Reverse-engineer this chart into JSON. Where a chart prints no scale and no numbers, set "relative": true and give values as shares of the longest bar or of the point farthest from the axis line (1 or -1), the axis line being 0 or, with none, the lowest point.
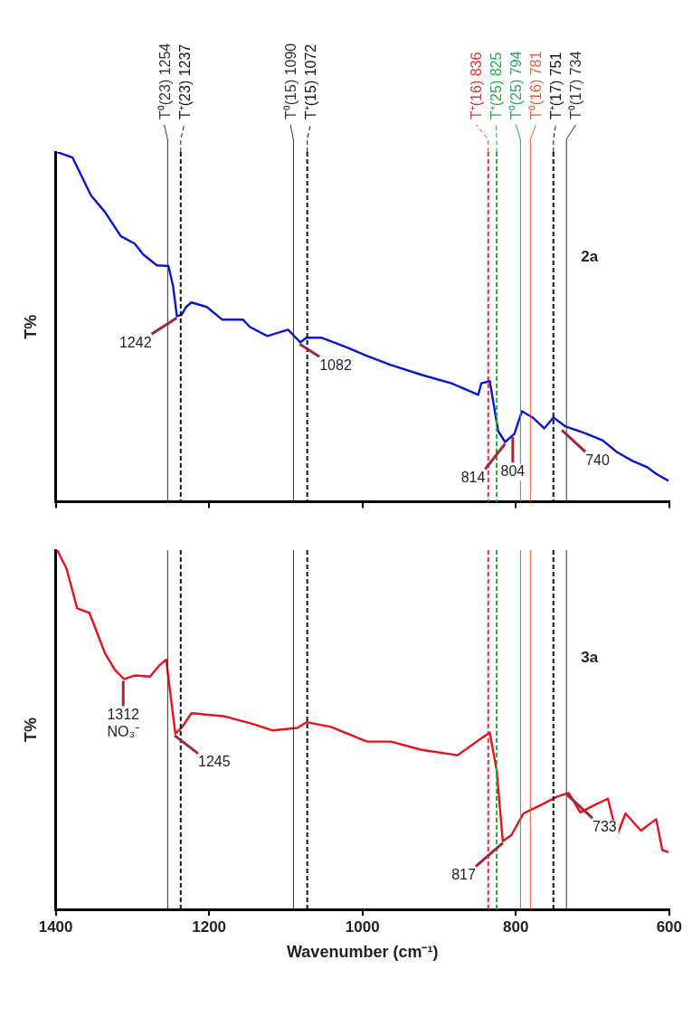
{
  "chart_data": [
    {
      "type": "line",
      "relative": true,
      "ylabel": "T%",
      "xlim": [
        1400,
        600
      ],
      "xticks": [
        1400,
        1200,
        1000,
        800,
        600
      ],
      "tick_labels": false,
      "legend": false,
      "grid": false,
      "marker": "none",
      "series": [
        {
          "color": "#0a14d2",
          "x": [
            1398,
            1378,
            1354,
            1336,
            1315,
            1297,
            1286,
            1268,
            1253,
            1247,
            1242,
            1236,
            1230,
            1223,
            1203,
            1183,
            1156,
            1147,
            1124,
            1097,
            1081,
            1073,
            1053,
            1022,
            994,
            963,
            923,
            884,
            849,
            845,
            834,
            823,
            814,
            802,
            792,
            778,
            763,
            751,
            735,
            711,
            687,
            668,
            648,
            628,
            617,
            601
          ],
          "values": [
            1.0,
            0.984,
            0.876,
            0.829,
            0.759,
            0.738,
            0.707,
            0.676,
            0.674,
            0.617,
            0.531,
            0.534,
            0.557,
            0.57,
            0.557,
            0.521,
            0.521,
            0.5,
            0.474,
            0.492,
            0.456,
            0.469,
            0.469,
            0.443,
            0.417,
            0.391,
            0.363,
            0.339,
            0.306,
            0.339,
            0.345,
            0.202,
            0.171,
            0.194,
            0.259,
            0.241,
            0.21,
            0.241,
            0.215,
            0.197,
            0.176,
            0.142,
            0.117,
            0.098,
            0.08,
            0.06
          ]
        }
      ],
      "ref_lines": [
        {
          "axis": "x",
          "value": 1254,
          "label": "T⁰(23) 1254",
          "color": "#333333",
          "line_style": "solid"
        },
        {
          "axis": "x",
          "value": 1237,
          "label": "T⁺(23) 1237",
          "color": "#111111",
          "line_style": "dashed"
        },
        {
          "axis": "x",
          "value": 1090,
          "label": "T⁰(15) 1090",
          "color": "#333333",
          "line_style": "solid"
        },
        {
          "axis": "x",
          "value": 1072,
          "label": "T⁺(15) 1072",
          "color": "#111111",
          "line_style": "dashed"
        },
        {
          "axis": "x",
          "value": 836,
          "label": "T⁺(16) 836",
          "color": "#e0303a",
          "line_style": "dashed"
        },
        {
          "axis": "x",
          "value": 825,
          "label": "T⁺(25) 825",
          "color": "#2aa845",
          "line_style": "dashed"
        },
        {
          "axis": "x",
          "value": 794,
          "label": "T⁰(25) 794",
          "color": "#2f9e6a",
          "line_style": "solid"
        },
        {
          "axis": "x",
          "value": 781,
          "label": "T⁰(16) 781",
          "color": "#e0603a",
          "line_style": "solid"
        },
        {
          "axis": "x",
          "value": 751,
          "label": "T⁺(17) 751",
          "color": "#111111",
          "line_style": "dashed"
        },
        {
          "axis": "x",
          "value": 734,
          "label": "T⁰(17) 734",
          "color": "#333333",
          "line_style": "solid"
        }
      ],
      "annotations": [
        {
          "text": "1242",
          "x": 1242,
          "y": 0.531
        },
        {
          "text": "1082",
          "x": 1082,
          "y": 0.456
        },
        {
          "text": "814",
          "x": 814,
          "y": 0.171
        },
        {
          "text": "804",
          "x": 804,
          "y": 0.19
        },
        {
          "text": "740",
          "x": 740,
          "y": 0.21
        },
        "2a"
      ]
    },
    {
      "type": "line",
      "relative": true,
      "ylabel": "T%",
      "xlabel": "Wavenumber (cm⁻¹)",
      "xlim": [
        1400,
        600
      ],
      "xticks": [
        1400,
        1200,
        1000,
        800,
        600
      ],
      "tick_labels": "x",
      "legend": false,
      "grid": false,
      "marker": "none",
      "series": [
        {
          "color": "#e8101a",
          "x": [
            1398,
            1386,
            1372,
            1356,
            1336,
            1323,
            1311,
            1297,
            1277,
            1265,
            1256,
            1244,
            1235,
            1223,
            1179,
            1140,
            1117,
            1085,
            1073,
            1041,
            994,
            963,
            923,
            876,
            845,
            834,
            825,
            817,
            806,
            790,
            766,
            746,
            731,
            716,
            696,
            680,
            668,
            657,
            637,
            617,
            609,
            601
          ],
          "values": [
            1.0,
            0.949,
            0.838,
            0.825,
            0.714,
            0.667,
            0.641,
            0.651,
            0.648,
            0.679,
            0.695,
            0.489,
            0.508,
            0.546,
            0.537,
            0.514,
            0.498,
            0.505,
            0.521,
            0.508,
            0.467,
            0.467,
            0.444,
            0.429,
            0.476,
            0.492,
            0.387,
            0.19,
            0.206,
            0.267,
            0.292,
            0.314,
            0.324,
            0.27,
            0.292,
            0.308,
            0.206,
            0.267,
            0.219,
            0.251,
            0.165,
            0.159
          ]
        }
      ],
      "ref_lines": [
        {
          "axis": "x",
          "value": 1254,
          "color": "#333333",
          "line_style": "solid"
        },
        {
          "axis": "x",
          "value": 1237,
          "color": "#111111",
          "line_style": "dashed"
        },
        {
          "axis": "x",
          "value": 1090,
          "color": "#333333",
          "line_style": "solid"
        },
        {
          "axis": "x",
          "value": 1072,
          "color": "#111111",
          "line_style": "dashed"
        },
        {
          "axis": "x",
          "value": 836,
          "color": "#e0303a",
          "line_style": "dashed"
        },
        {
          "axis": "x",
          "value": 825,
          "color": "#2aa845",
          "line_style": "dashed"
        },
        {
          "axis": "x",
          "value": 794,
          "color": "#2f9e6a",
          "line_style": "solid"
        },
        {
          "axis": "x",
          "value": 781,
          "color": "#e0603a",
          "line_style": "solid"
        },
        {
          "axis": "x",
          "value": 751,
          "color": "#111111",
          "line_style": "dashed"
        },
        {
          "axis": "x",
          "value": 734,
          "color": "#333333",
          "line_style": "solid"
        }
      ],
      "annotations": [
        {
          "text": "1312 NO₃⁻",
          "x": 1312,
          "y": 0.641
        },
        {
          "text": "1245",
          "x": 1245,
          "y": 0.489
        },
        {
          "text": "817",
          "x": 817,
          "y": 0.19
        },
        {
          "text": "733",
          "x": 733,
          "y": 0.324
        },
        "3a"
      ]
    }
  ]
}
